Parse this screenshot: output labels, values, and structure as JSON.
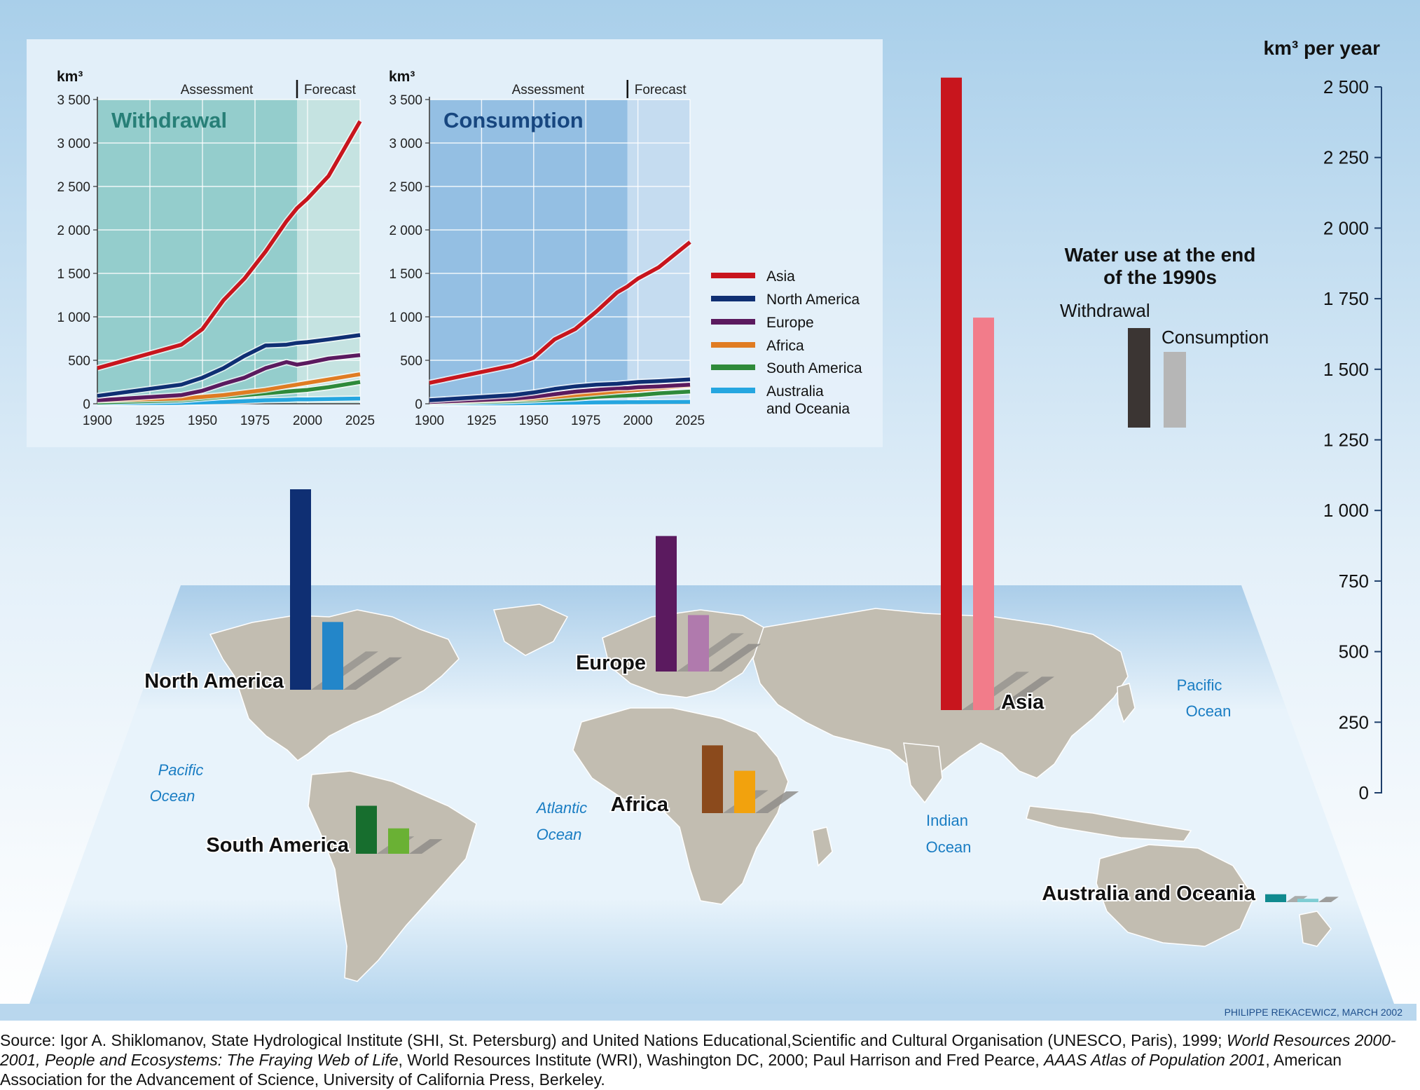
{
  "colors": {
    "asia": "#c8151d",
    "asia_light": "#f27c8a",
    "north_america": "#0f2f73",
    "north_america_light": "#2386c9",
    "europe": "#5b1a5f",
    "europe_light": "#b07aad",
    "africa": "#8b4a1c",
    "africa_light": "#f2a20d",
    "south_america": "#176e2e",
    "south_america_light": "#6ab134",
    "oceania": "#108a8f",
    "oceania_light": "#7fcdd3",
    "africa_line": "#e07c22",
    "south_america_line": "#2e8a3a",
    "oceania_line": "#25a6e0",
    "withdrawal_legend": "#3b3533",
    "consumption_legend": "#b6b6b6",
    "ocean_label": "#1a7dc3"
  },
  "line_chart_years": [
    1900,
    1925,
    1950,
    1975,
    2000,
    2025
  ],
  "chart_data": [
    {
      "type": "line",
      "title": "Withdrawal",
      "ylabel": "km³",
      "xlim": [
        1900,
        2025
      ],
      "ylim": [
        0,
        3500
      ],
      "yticks": [
        "0",
        "500",
        "1 000",
        "1 500",
        "2 000",
        "2 500",
        "3 000",
        "3 500"
      ],
      "periods": [
        "Assessment",
        "Forecast"
      ],
      "x": [
        1900,
        1940,
        1950,
        1960,
        1970,
        1980,
        1990,
        1995,
        2000,
        2010,
        2025
      ],
      "series": [
        {
          "name": "Asia",
          "values": [
            410,
            680,
            860,
            1190,
            1440,
            1750,
            2100,
            2250,
            2360,
            2620,
            3250
          ]
        },
        {
          "name": "North America",
          "values": [
            90,
            220,
            300,
            410,
            550,
            670,
            680,
            700,
            710,
            740,
            790
          ]
        },
        {
          "name": "Europe",
          "values": [
            40,
            100,
            150,
            230,
            300,
            410,
            480,
            450,
            470,
            520,
            560
          ]
        },
        {
          "name": "Africa",
          "values": [
            40,
            60,
            80,
            100,
            130,
            160,
            200,
            220,
            240,
            280,
            340
          ]
        },
        {
          "name": "South America",
          "values": [
            15,
            40,
            60,
            80,
            100,
            120,
            140,
            150,
            160,
            190,
            250
          ]
        },
        {
          "name": "Australia and Oceania",
          "values": [
            5,
            10,
            15,
            20,
            30,
            40,
            45,
            50,
            50,
            55,
            60
          ]
        }
      ]
    },
    {
      "type": "line",
      "title": "Consumption",
      "ylabel": "km³",
      "xlim": [
        1900,
        2025
      ],
      "ylim": [
        0,
        3500
      ],
      "yticks": [
        "0",
        "500",
        "1 000",
        "1 500",
        "2 000",
        "2 500",
        "3 000",
        "3 500"
      ],
      "periods": [
        "Assessment",
        "Forecast"
      ],
      "x": [
        1900,
        1940,
        1950,
        1960,
        1970,
        1980,
        1990,
        1995,
        2000,
        2010,
        2025
      ],
      "series": [
        {
          "name": "Asia",
          "values": [
            240,
            440,
            530,
            740,
            860,
            1060,
            1280,
            1350,
            1440,
            1570,
            1860
          ]
        },
        {
          "name": "North America",
          "values": [
            40,
            100,
            130,
            170,
            200,
            220,
            230,
            240,
            250,
            260,
            280
          ]
        },
        {
          "name": "Europe",
          "values": [
            20,
            60,
            80,
            110,
            140,
            160,
            180,
            180,
            190,
            200,
            220
          ]
        },
        {
          "name": "Africa",
          "values": [
            20,
            50,
            60,
            80,
            100,
            120,
            140,
            150,
            160,
            180,
            210
          ]
        },
        {
          "name": "South America",
          "values": [
            10,
            30,
            40,
            50,
            60,
            80,
            90,
            95,
            100,
            120,
            140
          ]
        },
        {
          "name": "Australia and Oceania",
          "values": [
            3,
            5,
            8,
            10,
            12,
            15,
            17,
            18,
            18,
            20,
            22
          ]
        }
      ]
    },
    {
      "type": "bar",
      "title": "Water use at the end of the 1990s",
      "ylabel": "km³ per year",
      "ylim": [
        0,
        2500
      ],
      "yticks": [
        "0",
        "250",
        "500",
        "750",
        "1 000",
        "1 250",
        "1 500",
        "1 750",
        "2 000",
        "2 250",
        "2 500"
      ],
      "categories": [
        "North America",
        "Europe",
        "Africa",
        "South America",
        "Asia",
        "Australia and Oceania"
      ],
      "series": [
        {
          "name": "Withdrawal",
          "values": [
            710,
            480,
            240,
            170,
            2240,
            28
          ]
        },
        {
          "name": "Consumption",
          "values": [
            240,
            200,
            150,
            90,
            1390,
            12
          ]
        }
      ]
    }
  ],
  "line_legend": [
    "Asia",
    "North America",
    "Europe",
    "Africa",
    "South America",
    "Australia",
    "and Oceania"
  ],
  "bar_legend": {
    "title_line1": "Water use at the end",
    "title_line2": "of the 1990s",
    "withdrawal": "Withdrawal",
    "consumption": "Consumption"
  },
  "bar_axis_unit": "km³ per year",
  "oceans": {
    "pacific_w_1": "Pacific",
    "pacific_w_2": "Ocean",
    "atlantic_1": "Atlantic",
    "atlantic_2": "Ocean",
    "indian_1": "Indian",
    "indian_2": "Ocean",
    "pacific_e_1": "Pacific",
    "pacific_e_2": "Ocean"
  },
  "credit": "PHILIPPE REKACEWICZ, MARCH 2002",
  "source": {
    "p1": "Source: Igor A. Shiklomanov, State Hydrological Institute (SHI, St. Petersburg) and United Nations Educational,Scientific and Cultural Organisation (UNESCO, Paris), 1999; ",
    "i1": "World Resources 2000-2001, People and Ecosystems: The Fraying Web of Life",
    "p2": ", World Resources Institute (WRI), Washington DC, 2000; Paul Harrison and Fred Pearce, ",
    "i2": "AAAS Atlas of Population 2001",
    "p3": ", American Association for the Advancement of Science, University of California Press, Berkeley."
  }
}
